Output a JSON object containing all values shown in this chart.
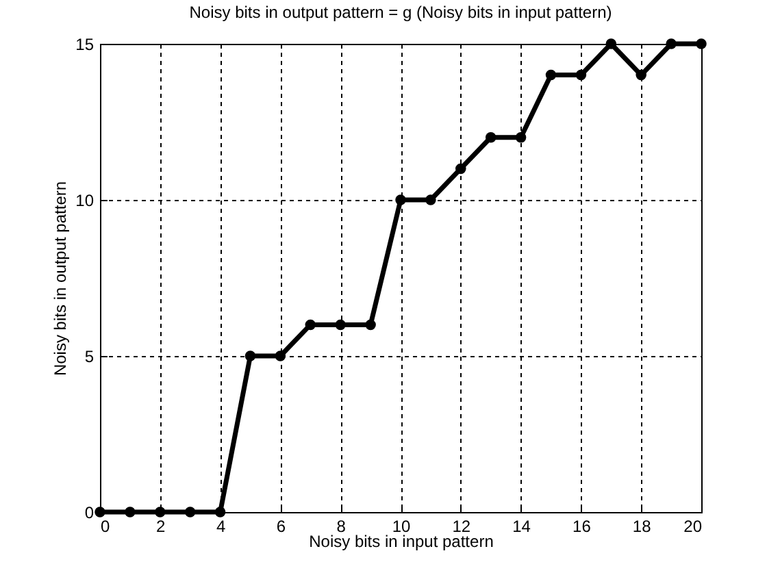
{
  "chart_data": {
    "type": "line",
    "title": "Noisy bits in output pattern = g (Noisy bits in input pattern)",
    "xlabel": "Noisy bits in input pattern",
    "ylabel": "Noisy bits in output pattern",
    "x": [
      0,
      1,
      2,
      3,
      4,
      5,
      6,
      7,
      8,
      9,
      10,
      11,
      12,
      13,
      14,
      15,
      16,
      17,
      18,
      19,
      20
    ],
    "series": [
      {
        "color": "#000000",
        "values": [
          0,
          0,
          0,
          0,
          0,
          5,
          5,
          6,
          6,
          6,
          10,
          10,
          11,
          12,
          12,
          14,
          14,
          15,
          14,
          15,
          15
        ]
      }
    ],
    "xlim": [
      0,
      20
    ],
    "xticks": [
      0,
      2,
      4,
      6,
      8,
      10,
      12,
      14,
      16,
      18,
      20
    ],
    "ylim": [
      0,
      15
    ],
    "yticks": [
      0,
      5,
      10,
      15
    ],
    "grid": true,
    "marker": "circle",
    "line_style": "solid"
  }
}
